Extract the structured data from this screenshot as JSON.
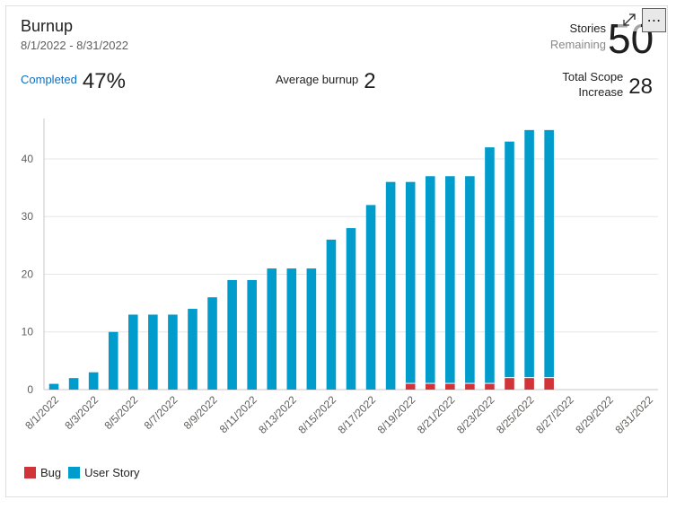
{
  "header": {
    "title": "Burnup",
    "date_range": "8/1/2022 - 8/31/2022",
    "remaining_label_1": "Stories",
    "remaining_label_2": "Remaining",
    "remaining_value": "50"
  },
  "icons": {
    "expand": "expand-icon",
    "more": "more-icon",
    "more_glyph": "⋯"
  },
  "metrics": {
    "completed_label": "Completed",
    "completed_value": "47%",
    "avg_label": "Average burnup",
    "avg_value": "2",
    "scope_label_1": "Total Scope",
    "scope_label_2": "Increase",
    "scope_value": "28"
  },
  "colors": {
    "bug": "#d13438",
    "story": "#009ccc",
    "grid": "#e8e6e4",
    "axis": "#c8c6c4",
    "tick": "#605e5c"
  },
  "chart_data": {
    "type": "bar",
    "stacked": true,
    "title": "Burnup",
    "xlabel": "",
    "ylabel": "",
    "ylim": [
      0,
      47
    ],
    "yticks": [
      0,
      10,
      20,
      30,
      40
    ],
    "categories": [
      "8/1/2022",
      "8/2/2022",
      "8/3/2022",
      "8/4/2022",
      "8/5/2022",
      "8/6/2022",
      "8/7/2022",
      "8/8/2022",
      "8/9/2022",
      "8/10/2022",
      "8/11/2022",
      "8/12/2022",
      "8/13/2022",
      "8/14/2022",
      "8/15/2022",
      "8/16/2022",
      "8/17/2022",
      "8/18/2022",
      "8/19/2022",
      "8/20/2022",
      "8/21/2022",
      "8/22/2022",
      "8/23/2022",
      "8/24/2022",
      "8/25/2022",
      "8/26/2022",
      "8/27/2022",
      "8/28/2022",
      "8/29/2022",
      "8/30/2022",
      "8/31/2022"
    ],
    "tick_labels": [
      "8/1/2022",
      "8/3/2022",
      "8/5/2022",
      "8/7/2022",
      "8/9/2022",
      "8/11/2022",
      "8/13/2022",
      "8/15/2022",
      "8/17/2022",
      "8/19/2022",
      "8/21/2022",
      "8/23/2022",
      "8/25/2022",
      "8/27/2022",
      "8/29/2022",
      "8/31/2022"
    ],
    "series": [
      {
        "name": "Bug",
        "color": "#d13438",
        "values": [
          0,
          0,
          0,
          0,
          0,
          0,
          0,
          0,
          0,
          0,
          0,
          0,
          0,
          0,
          0,
          0,
          0,
          0,
          1,
          1,
          1,
          1,
          1,
          2,
          2,
          2,
          null,
          null,
          null,
          null,
          null
        ]
      },
      {
        "name": "User Story",
        "color": "#009ccc",
        "values": [
          1,
          2,
          3,
          10,
          13,
          13,
          13,
          14,
          16,
          19,
          19,
          21,
          21,
          21,
          26,
          28,
          32,
          36,
          35,
          36,
          36,
          36,
          41,
          41,
          43,
          43,
          null,
          null,
          null,
          null,
          null
        ]
      }
    ],
    "legend": [
      "Bug",
      "User Story"
    ],
    "legend_position": "bottom-left"
  }
}
